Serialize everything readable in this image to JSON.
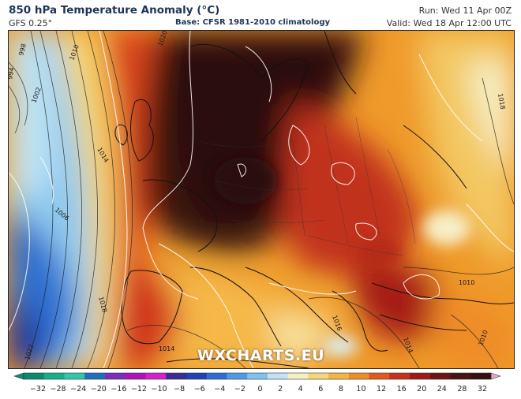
{
  "header": {
    "title": "850 hPa Temperature Anomaly (°C)",
    "model": "GFS 0.25°",
    "base": "Base: CFSR 1981-2010 climatology",
    "run": "Run: Wed 11 Apr 00Z",
    "valid": "Valid: Wed 18 Apr 12:00 UTC"
  },
  "watermark": "WXCHARTS.EU",
  "isobar_labels": [
    "998",
    "1010",
    "1002",
    "994",
    "1014",
    "1006",
    "1018",
    "1022",
    "1020",
    "1014",
    "1016",
    "1010",
    "1014",
    "1010",
    "1018"
  ],
  "colorbar": {
    "ticks": [
      "−32",
      "−28",
      "−24",
      "−20",
      "−16",
      "−12",
      "−10",
      "−8",
      "−6",
      "−4",
      "−2",
      "0",
      "2",
      "4",
      "6",
      "8",
      "10",
      "12",
      "16",
      "20",
      "24",
      "28",
      "32"
    ],
    "colors": [
      "#0b8a6e",
      "#15b08a",
      "#2fc6a9",
      "#1f6fbf",
      "#7b2fbf",
      "#b012b8",
      "#d61fc9",
      "#3c2a95",
      "#2242b4",
      "#2f6dd6",
      "#4d9be6",
      "#7fc2ef",
      "#bfe3f4",
      "#f6efc2",
      "#f5d77a",
      "#f3b545",
      "#ef8c27",
      "#e2581d",
      "#c7331a",
      "#9e1c16",
      "#6e1513",
      "#4a1411",
      "#331210"
    ]
  }
}
